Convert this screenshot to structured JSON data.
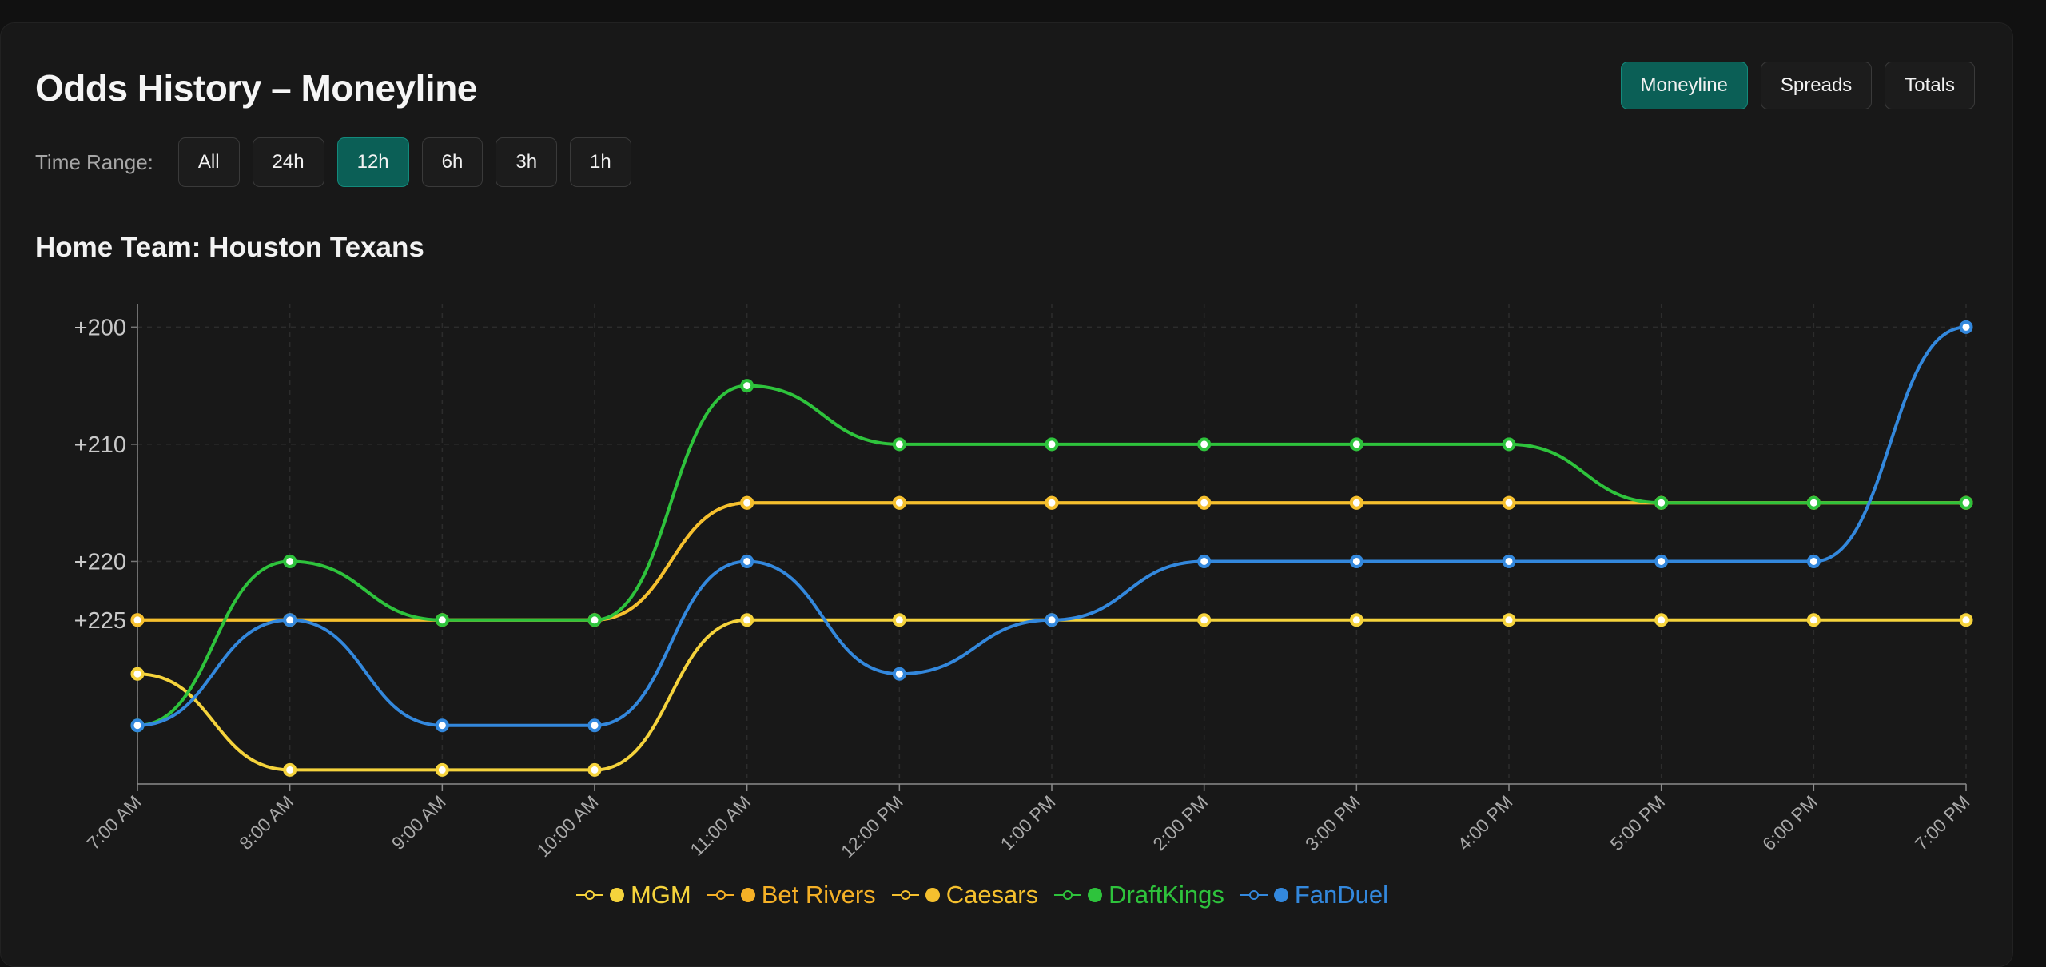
{
  "header": {
    "title": "Odds History – Moneyline",
    "market_tabs": [
      {
        "label": "Moneyline",
        "active": true
      },
      {
        "label": "Spreads",
        "active": false
      },
      {
        "label": "Totals",
        "active": false
      }
    ]
  },
  "time_range": {
    "label": "Time Range:",
    "options": [
      {
        "label": "All",
        "active": false
      },
      {
        "label": "24h",
        "active": false
      },
      {
        "label": "12h",
        "active": true
      },
      {
        "label": "6h",
        "active": false
      },
      {
        "label": "3h",
        "active": false
      },
      {
        "label": "1h",
        "active": false
      }
    ]
  },
  "subtitle": "Home Team: Houston Texans",
  "chart_data": {
    "type": "line",
    "x": [
      "7:00 AM",
      "8:00 AM",
      "9:00 AM",
      "10:00 AM",
      "11:00 AM",
      "12:00 PM",
      "1:00 PM",
      "2:00 PM",
      "3:00 PM",
      "4:00 PM",
      "5:00 PM",
      "6:00 PM",
      "7:00 PM"
    ],
    "y_ticks": [
      {
        "value": 200,
        "label": "+200"
      },
      {
        "value": 210,
        "label": "+210"
      },
      {
        "value": 220,
        "label": "+220"
      },
      {
        "value": 225,
        "label": "+225"
      }
    ],
    "ylim": [
      198,
      239
    ],
    "y_reversed": true,
    "grid": true,
    "legend_position": "bottom-center",
    "series": [
      {
        "name": "MGM",
        "color": "#f5d33c",
        "values": [
          229.6,
          237.8,
          237.8,
          237.8,
          225,
          225,
          225,
          225,
          225,
          225,
          225,
          225,
          225
        ]
      },
      {
        "name": "Bet Rivers",
        "color": "#f5b026",
        "values": [
          225,
          225,
          225,
          225,
          215,
          215,
          215,
          215,
          215,
          215,
          215,
          215,
          215
        ]
      },
      {
        "name": "Caesars",
        "color": "#f5c02e",
        "values": [
          225,
          225,
          225,
          225,
          215,
          215,
          215,
          215,
          215,
          215,
          215,
          215,
          215
        ]
      },
      {
        "name": "DraftKings",
        "color": "#2ec33c",
        "values": [
          234,
          220,
          225,
          225,
          205,
          210,
          210,
          210,
          210,
          210,
          215,
          215,
          215
        ]
      },
      {
        "name": "FanDuel",
        "color": "#3388dd",
        "values": [
          234,
          225,
          234,
          234,
          220,
          229.6,
          225,
          220,
          220,
          220,
          220,
          220,
          200
        ]
      }
    ]
  }
}
